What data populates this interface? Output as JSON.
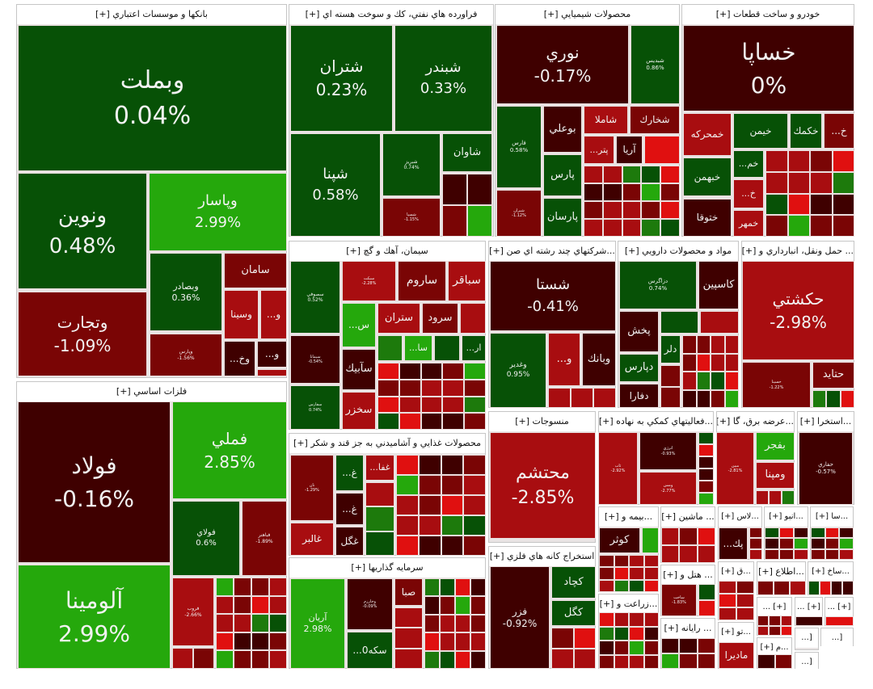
{
  "palette": {
    "DG": "#075106",
    "G": "#1d7a0c",
    "BG": "#25a80c",
    "DR": "#3f0000",
    "R1": "#7a0505",
    "R2": "#a80d10",
    "R3": "#e01010"
  },
  "sectors": [
    {
      "title": "بانكها و موسسات اعتباري [+]",
      "tiles": [
        {
          "symbol": "وبملت",
          "change": "0.04%",
          "color": "DG"
        },
        {
          "symbol": "ونوين",
          "change": "0.48%",
          "color": "DG"
        },
        {
          "symbol": "وپاسار",
          "change": "2.99%",
          "color": "BG"
        },
        {
          "symbol": "وتجارت",
          "change": "-1.09%",
          "color": "R1"
        },
        {
          "symbol": "وبصادر",
          "change": "0.36%",
          "color": "DG"
        },
        {
          "symbol": "سامان",
          "change": "",
          "color": "R1"
        },
        {
          "symbol": "وسينا",
          "change": "",
          "color": "R2"
        },
        {
          "symbol": "...و",
          "change": "",
          "color": "R2"
        },
        {
          "symbol": "وپارس",
          "change": "-1.56%",
          "color": "R1"
        },
        {
          "symbol": "...وخ",
          "change": "",
          "color": "DR"
        },
        {
          "symbol": "...و",
          "change": "",
          "color": "DR"
        }
      ]
    },
    {
      "title": "فلزات اساسي [+]",
      "tiles": [
        {
          "symbol": "فولاد",
          "change": "-0.16%",
          "color": "DR"
        },
        {
          "symbol": "فملي",
          "change": "2.85%",
          "color": "BG"
        },
        {
          "symbol": "فولاي",
          "change": "0.6%",
          "color": "DG"
        },
        {
          "symbol": "فباهنر",
          "change": "-1.89%",
          "color": "R1"
        },
        {
          "symbol": "آلومينا",
          "change": "2.99%",
          "color": "BG"
        },
        {
          "symbol": "فروب",
          "change": "-2.66%",
          "color": "R2"
        }
      ]
    },
    {
      "title": "فراورده هاي نفتي، كك و سوخت هسته اي [+]",
      "tiles": [
        {
          "symbol": "شتران",
          "change": "0.23%",
          "color": "DG"
        },
        {
          "symbol": "شبندر",
          "change": "0.33%",
          "color": "DG"
        },
        {
          "symbol": "شپنا",
          "change": "0.58%",
          "color": "DG"
        },
        {
          "symbol": "شبريز",
          "change": "0.74%",
          "color": "DG"
        },
        {
          "symbol": "شسپا",
          "change": "-1.15%",
          "color": "R1"
        },
        {
          "symbol": "شاوان",
          "change": "",
          "color": "DG"
        }
      ]
    },
    {
      "title": "محصولات شيميايي [+]",
      "tiles": [
        {
          "symbol": "نوري",
          "change": "-0.17%",
          "color": "DR"
        },
        {
          "symbol": "شبديس",
          "change": "0.86%",
          "color": "DG"
        },
        {
          "symbol": "فارس",
          "change": "0.58%",
          "color": "DG"
        },
        {
          "symbol": "شيران",
          "change": "-1.12%",
          "color": "R1"
        },
        {
          "symbol": "بوعلي",
          "change": "",
          "color": "DR"
        },
        {
          "symbol": "پارس",
          "change": "",
          "color": "DG"
        },
        {
          "symbol": "پارسان",
          "change": "",
          "color": "DG"
        },
        {
          "symbol": "شاملا",
          "change": "",
          "color": "R2"
        },
        {
          "symbol": "شخارك",
          "change": "",
          "color": "R1"
        },
        {
          "symbol": "...پتر",
          "change": "",
          "color": "R2"
        },
        {
          "symbol": "آريا",
          "change": "",
          "color": "DR"
        },
        {
          "symbol": "",
          "change": "",
          "color": "R3"
        }
      ]
    },
    {
      "title": "خودرو و ساخت قطعات [+]",
      "tiles": [
        {
          "symbol": "خساپا",
          "change": "0%",
          "color": "DR"
        },
        {
          "symbol": "خمحركه",
          "change": "",
          "color": "R2"
        },
        {
          "symbol": "خيمن",
          "change": "",
          "color": "DG"
        },
        {
          "symbol": "خكمك",
          "change": "",
          "color": "DG"
        },
        {
          "symbol": "...خ",
          "change": "",
          "color": "R1"
        },
        {
          "symbol": "خبهمن",
          "change": "",
          "color": "DG"
        },
        {
          "symbol": "...خم",
          "change": "",
          "color": "DG"
        },
        {
          "symbol": "...خ",
          "change": "",
          "color": "R2"
        },
        {
          "symbol": "خمهر",
          "change": "",
          "color": "R2"
        },
        {
          "symbol": "ختوقا",
          "change": "",
          "color": "DR"
        }
      ]
    },
    {
      "title": "سيمان، آهك و گچ [+]",
      "tiles": [
        {
          "symbol": "سصوفي",
          "change": "0.52%",
          "color": "DG"
        },
        {
          "symbol": "سيمانا",
          "change": "-0.54%",
          "color": "DR"
        },
        {
          "symbol": "سفارس",
          "change": "0.74%",
          "color": "DG"
        },
        {
          "symbol": "سبكت",
          "change": "-2.28%",
          "color": "R2"
        },
        {
          "symbol": "ساروم",
          "change": "",
          "color": "R1"
        },
        {
          "symbol": "سباقر",
          "change": "",
          "color": "R2"
        },
        {
          "symbol": "...س",
          "change": "",
          "color": "BG"
        },
        {
          "symbol": "ستران",
          "change": "",
          "color": "R2"
        },
        {
          "symbol": "سرود",
          "change": "",
          "color": "R1"
        },
        {
          "symbol": "",
          "change": "",
          "color": "R2"
        },
        {
          "symbol": "سآبيك",
          "change": "",
          "color": "DR"
        },
        {
          "symbol": "سخزر",
          "change": "",
          "color": "R2"
        },
        {
          "symbol": "...سا",
          "change": "",
          "color": "BG"
        },
        {
          "symbol": "...ار",
          "change": "",
          "color": "DG"
        }
      ]
    },
    {
      "title": "...شركتهاي چند رشته اي صن [+]",
      "tiles": [
        {
          "symbol": "شستا",
          "change": "-0.41%",
          "color": "DR"
        },
        {
          "symbol": "وغدير",
          "change": "0.95%",
          "color": "DG"
        },
        {
          "symbol": "...و",
          "change": "",
          "color": "R2"
        },
        {
          "symbol": "وبانك",
          "change": "",
          "color": "DR"
        }
      ]
    },
    {
      "title": "مواد و محصولات دارويي [+]",
      "tiles": [
        {
          "symbol": "دزاگرس",
          "change": "0.74%",
          "color": "DG"
        },
        {
          "symbol": "كاسپين",
          "change": "",
          "color": "DR"
        },
        {
          "symbol": "پخش",
          "change": "",
          "color": "DR"
        },
        {
          "symbol": "دپارس",
          "change": "",
          "color": "DG"
        },
        {
          "symbol": "دفارا",
          "change": "",
          "color": "DR"
        },
        {
          "symbol": "",
          "change": "",
          "color": "DG"
        },
        {
          "symbol": "",
          "change": "",
          "color": "R2"
        },
        {
          "symbol": "دلر",
          "change": "",
          "color": "DG"
        }
      ]
    },
    {
      "title": "... حمل ونقل، انبارداري و [+]",
      "tiles": [
        {
          "symbol": "حكشتي",
          "change": "-2.98%",
          "color": "R2"
        },
        {
          "symbol": "حسينا",
          "change": "-1.22%",
          "color": "R1"
        },
        {
          "symbol": "حتايد",
          "change": "",
          "color": "R1"
        }
      ]
    },
    {
      "title": "منسوجات [+]",
      "tiles": [
        {
          "symbol": "محتشم",
          "change": "-2.85%",
          "color": "R2"
        }
      ]
    },
    {
      "title": "...فعاليتهاي كمكي به نهاده [+]",
      "tiles": [
        {
          "symbol": "ثاب",
          "change": "-2.92%",
          "color": "R2"
        },
        {
          "symbol": "انرژي",
          "change": "-0.93%",
          "color": "DR"
        },
        {
          "symbol": "ومس",
          "change": "-2.77%",
          "color": "R2"
        }
      ]
    },
    {
      "title": "...عرضه برق، گا [+]",
      "tiles": [
        {
          "symbol": "مبين",
          "change": "-2.81%",
          "color": "R2"
        },
        {
          "symbol": "بفجر",
          "change": "",
          "color": "BG"
        },
        {
          "symbol": "ومپنا",
          "change": "",
          "color": "R2"
        }
      ]
    },
    {
      "title": "...استخرا [+]",
      "tiles": [
        {
          "symbol": "حفاري",
          "change": "-0.57%",
          "color": "DR"
        }
      ]
    },
    {
      "title": "محصولات غذايي و آشاميدني به جز قند و شكر [+]",
      "tiles": [
        {
          "symbol": "نان",
          "change": "-1.29%",
          "color": "R1"
        },
        {
          "symbol": "غالبر",
          "change": "",
          "color": "R2"
        },
        {
          "symbol": "...غ",
          "change": "",
          "color": "DG"
        },
        {
          "symbol": "...غ",
          "change": "",
          "color": "DR"
        },
        {
          "symbol": "غگل",
          "change": "",
          "color": "DR"
        },
        {
          "symbol": "...غفا",
          "change": "",
          "color": "R2"
        }
      ]
    },
    {
      "title": "سرمايه گذاريها [+]",
      "tiles": [
        {
          "symbol": "آريان",
          "change": "2.98%",
          "color": "BG"
        },
        {
          "symbol": "وخارزم",
          "change": "-0.09%",
          "color": "DR"
        },
        {
          "symbol": "...سكه0",
          "change": "",
          "color": "DG"
        },
        {
          "symbol": "صبا",
          "change": "",
          "color": "R1"
        }
      ]
    },
    {
      "title": "استخراج كانه هاي فلزي [+]",
      "tiles": [
        {
          "symbol": "فزر",
          "change": "-0.92%",
          "color": "DR"
        },
        {
          "symbol": "كچاد",
          "change": "",
          "color": "DG"
        },
        {
          "symbol": "كگل",
          "change": "",
          "color": "DG"
        }
      ]
    },
    {
      "title": "...بيمه و [+]",
      "tiles": [
        {
          "symbol": "كوثر",
          "change": "",
          "color": "DR"
        }
      ]
    },
    {
      "title": "... ماشين [+]",
      "tiles": []
    },
    {
      "title": "...لاس [+]",
      "tiles": [
        {
          "symbol": "...پك",
          "change": "",
          "color": "DR"
        }
      ]
    },
    {
      "title": "...انبو [+]",
      "tiles": []
    },
    {
      "title": "...سا [+]",
      "tiles": []
    },
    {
      "title": "... هتل و [+]",
      "tiles": [
        {
          "symbol": "ساخت",
          "change": "-1.83%",
          "color": "R1"
        }
      ]
    },
    {
      "title": "...ق [+]",
      "tiles": []
    },
    {
      "title": "...اطلاع [+]",
      "tiles": []
    },
    {
      "title": "...ساخ [+]",
      "tiles": []
    },
    {
      "title": "...زراعت و [+]",
      "tiles": []
    },
    {
      "title": "... رايانه [+]",
      "tiles": []
    },
    {
      "title": "...تو [+]",
      "tiles": [
        {
          "symbol": "ماديرا",
          "change": "",
          "color": "R2"
        }
      ]
    },
    {
      "title": "[+] ...",
      "tiles": []
    },
    {
      "title": "[+] ...",
      "tiles": []
    },
    {
      "title": "[+] ...",
      "tiles": []
    },
    {
      "title": "...م [+]",
      "tiles": []
    },
    {
      "title": "[...",
      "tiles": []
    },
    {
      "title": "[...",
      "tiles": []
    },
    {
      "title": "[...",
      "tiles": []
    }
  ]
}
